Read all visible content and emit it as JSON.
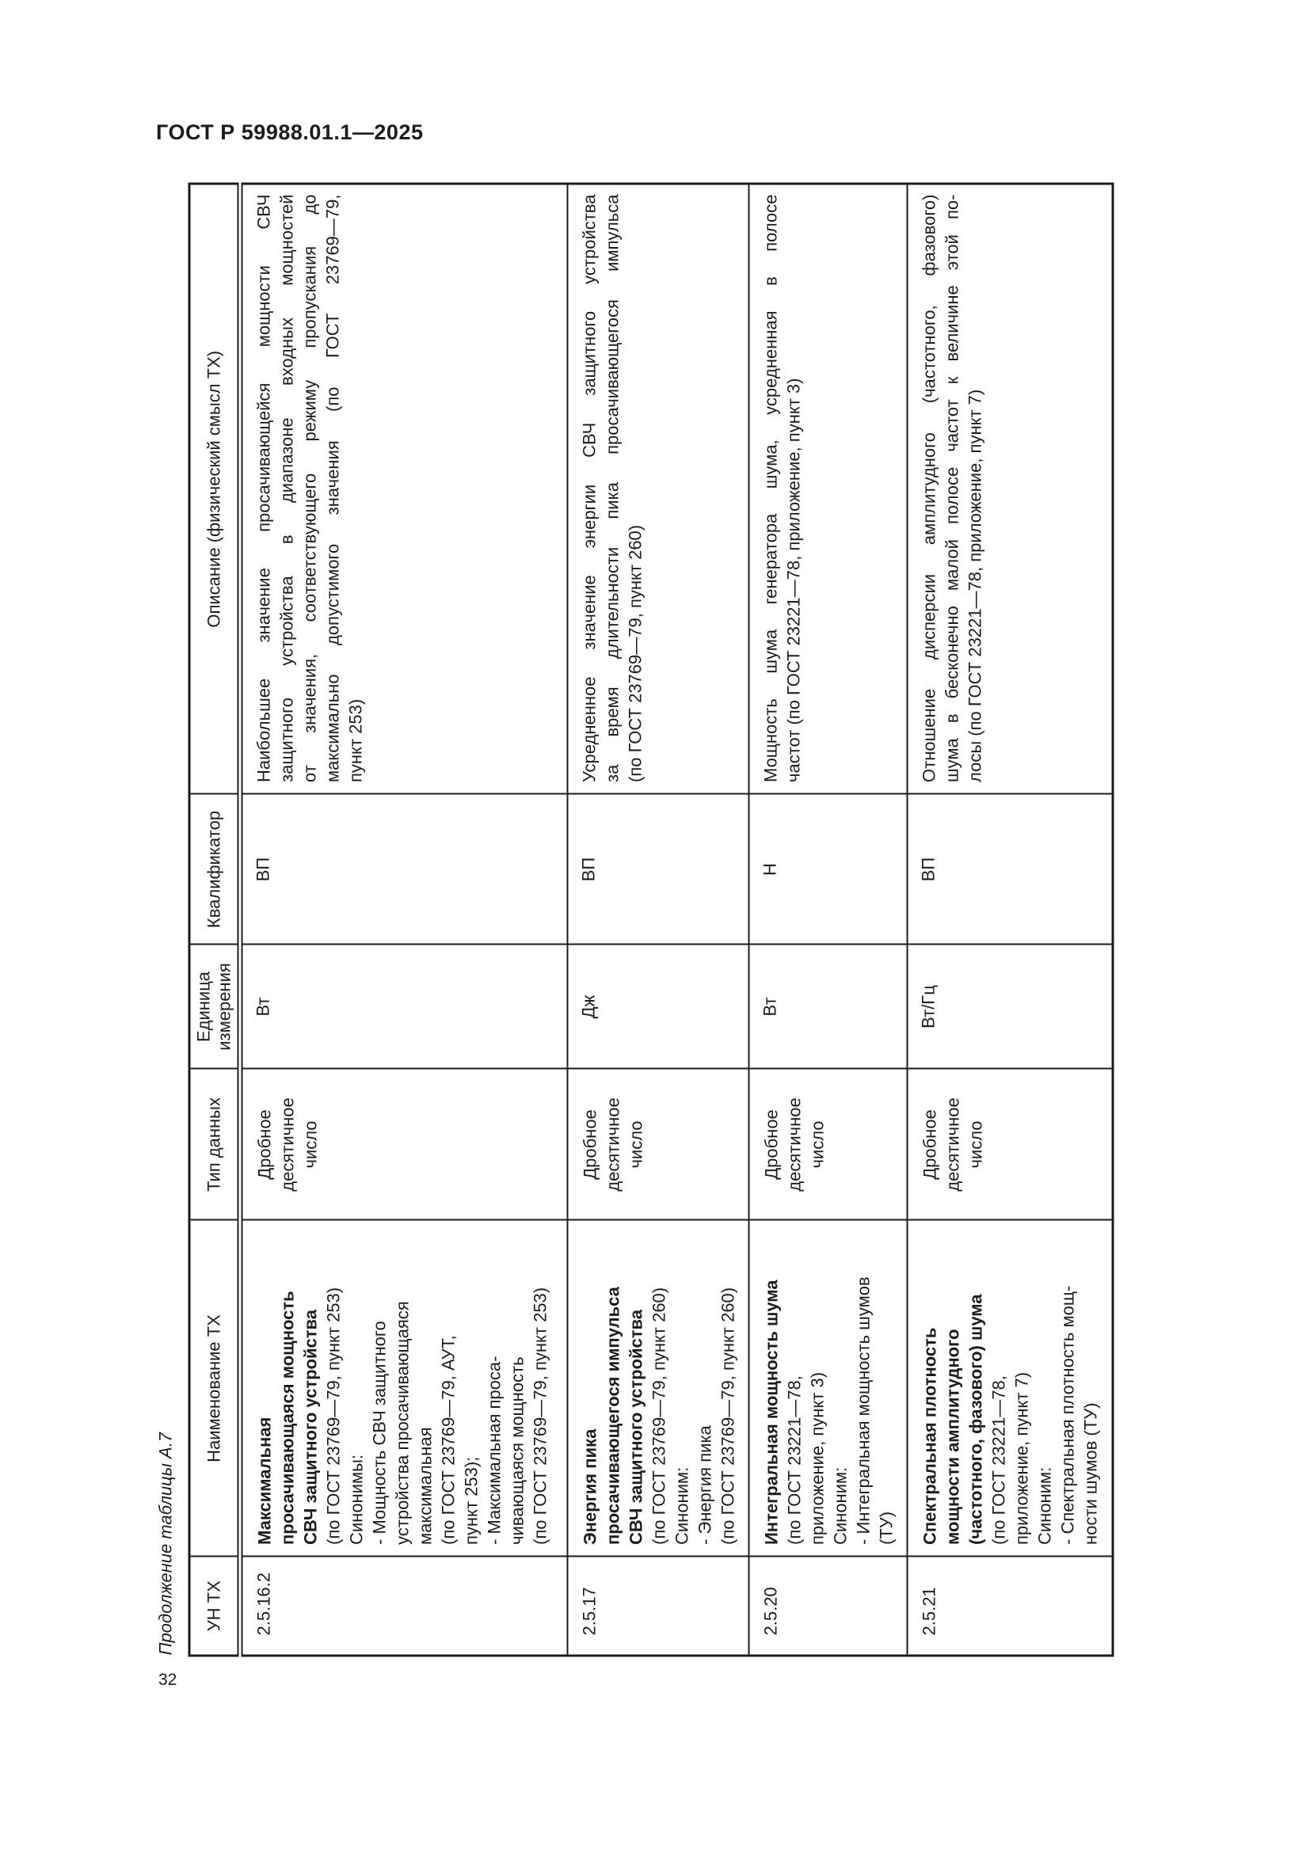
{
  "page": {
    "header": "ГОСТ Р 59988.01.1—2025",
    "page_number": "32",
    "table_caption": "Продолжение таблицы А.7"
  },
  "table": {
    "columns": [
      "УН ТХ",
      "Наименование ТХ",
      "Тип данных",
      "Единица измерения",
      "Квалификатор",
      "Описание (физический смысл ТХ)"
    ],
    "rows": [
      {
        "un_tx": "2.5.16.2",
        "name_lines_bold": [
          "Максимальная",
          "просачивающаяся мощность",
          "СВЧ защитного устройства"
        ],
        "name_lines_rest": [
          "(по ГОСТ 23769—79, пункт 253)",
          "Синонимы:",
          "- Мощность СВЧ защитного",
          "устройства просачивающаяся",
          "максимальная",
          "(по ГОСТ 23769—79, АУТ,",
          "пункт 253);",
          "- Максимальная проса-",
          "чивающаяся мощность",
          "(по ГОСТ 23769—79, пункт 253)"
        ],
        "data_type_lines": [
          "Дробное",
          "десятичное",
          "число"
        ],
        "unit": "Вт",
        "qualifier": "ВП",
        "description_lines": [
          "Наибольшее значение просачивающейся мощности СВЧ",
          "защитного устройства в диапазоне входных мощностей",
          "от значения, соответствующего режиму пропускания до",
          "максимально допустимого значения (по ГОСТ 23769—79,",
          "пункт 253)"
        ]
      },
      {
        "un_tx": "2.5.17",
        "name_lines_bold": [
          "Энергия пика",
          "просачивающегося импульса",
          "СВЧ защитного устройства"
        ],
        "name_lines_rest": [
          "(по ГОСТ 23769—79, пункт 260)",
          "Синоним:",
          "- Энергия пика",
          "(по ГОСТ 23769—79, пункт 260)"
        ],
        "data_type_lines": [
          "Дробное",
          "десятичное",
          "число"
        ],
        "unit": "Дж",
        "qualifier": "ВП",
        "description_lines": [
          "Усредненное значение энергии СВЧ защитного устройства",
          "за время длительности пика просачивающегося импульса",
          "(по ГОСТ 23769—79, пункт 260)"
        ]
      },
      {
        "un_tx": "2.5.20",
        "name_lines_bold": [
          "Интегральная мощность шума"
        ],
        "name_lines_rest": [
          "(по ГОСТ 23221—78,",
          "приложение, пункт 3)",
          "Синоним:",
          "- Интегральная мощность шумов",
          "(ТУ)"
        ],
        "data_type_lines": [
          "Дробное",
          "десятичное",
          "число"
        ],
        "unit": "Вт",
        "qualifier": "Н",
        "description_lines": [
          "Мощность шума генератора шума, усредненная в полосе",
          "частот (по ГОСТ 23221—78, приложение, пункт 3)"
        ]
      },
      {
        "un_tx": "2.5.21",
        "name_lines_bold": [
          "Спектральная плотность",
          "мощности амплитудного",
          "(частотного, фазового) шума"
        ],
        "name_lines_rest": [
          "(по ГОСТ 23221—78,",
          "приложение, пункт 7)",
          "Синоним:",
          "- Спектральная плотность мощ-",
          "ности шумов (ТУ)"
        ],
        "data_type_lines": [
          "Дробное",
          "десятичное",
          "число"
        ],
        "unit": "Вт/Гц",
        "qualifier": "ВП",
        "description_lines": [
          "Отношение дисперсии амплитудного (частотного, фазового)",
          "шума в бесконечно малой полосе частот к величине этой по-",
          "лосы (по ГОСТ 23221—78, приложение, пункт 7)"
        ]
      }
    ]
  }
}
